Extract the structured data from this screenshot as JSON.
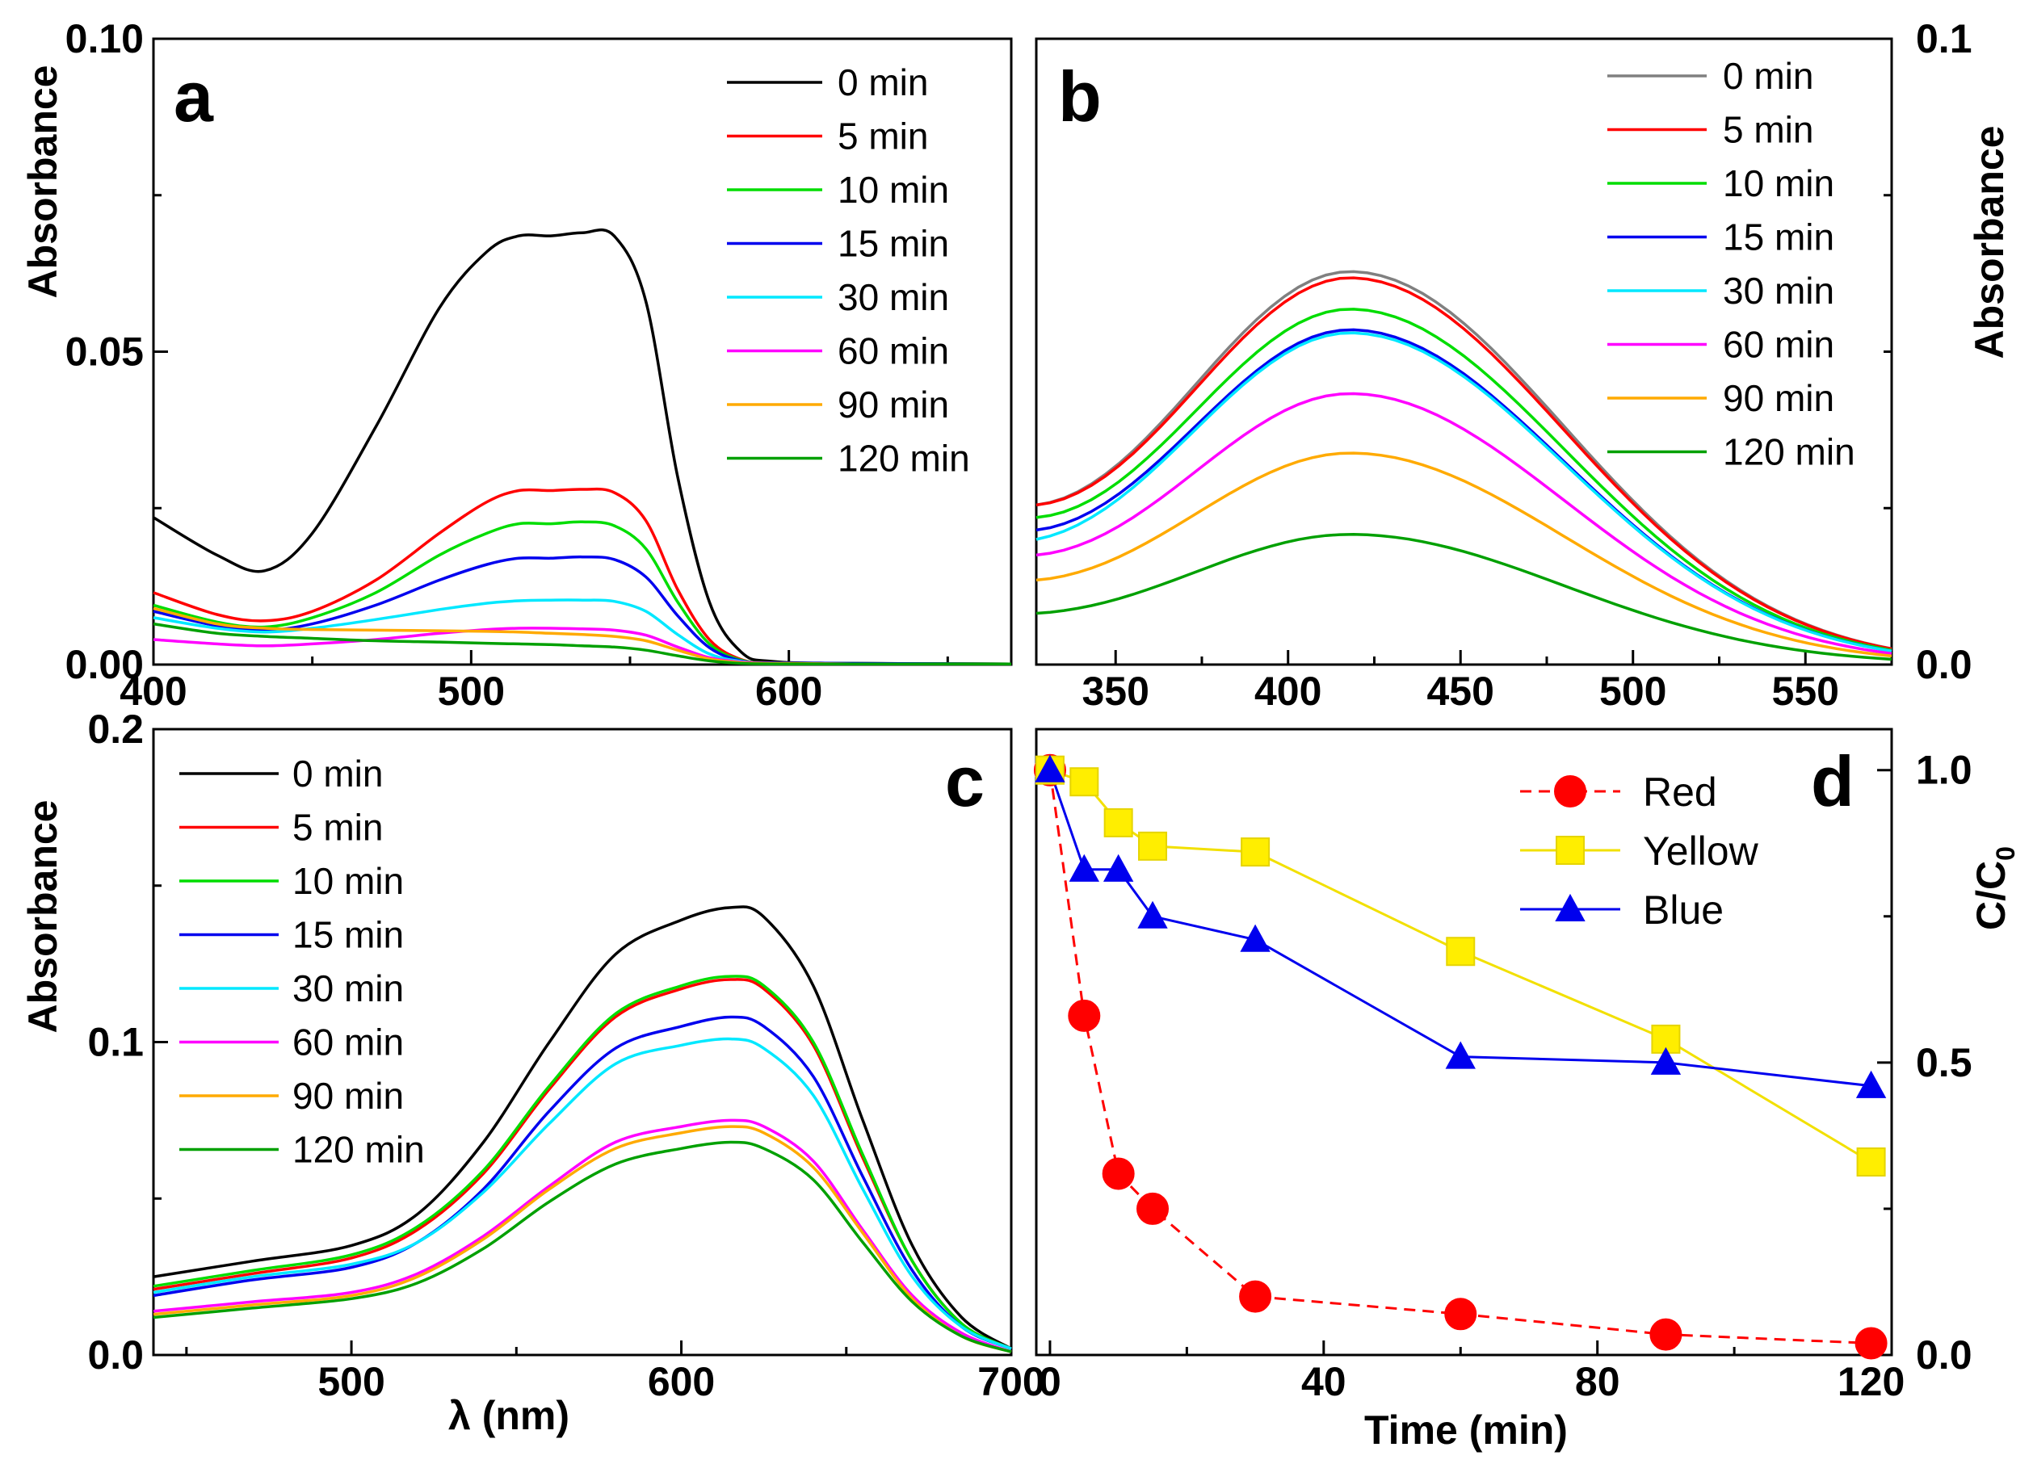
{
  "chart_data": [
    {
      "panel": "a",
      "type": "line",
      "panel_label": "a",
      "xlabel": "",
      "ylabel": "Absorbance",
      "xlim": [
        400,
        670
      ],
      "ylim": [
        0,
        0.1
      ],
      "xticks": [
        "400",
        "500",
        "600"
      ],
      "yticks": [
        "0.00",
        "0.05",
        "0.10"
      ],
      "legend_position": "top-right",
      "series": [
        {
          "name": "0 min",
          "color": "#000000",
          "x": [
            400,
            420,
            435,
            450,
            470,
            490,
            505,
            515,
            525,
            535,
            545,
            555,
            565,
            575,
            585,
            595,
            620,
            670
          ],
          "y": [
            0.0235,
            0.0175,
            0.015,
            0.021,
            0.038,
            0.057,
            0.066,
            0.0685,
            0.0685,
            0.069,
            0.0685,
            0.058,
            0.03,
            0.01,
            0.002,
            0.0005,
            0.0002,
            0.0001
          ]
        },
        {
          "name": "5 min",
          "color": "#ff0000",
          "x": [
            400,
            420,
            435,
            450,
            470,
            490,
            505,
            515,
            525,
            535,
            545,
            555,
            565,
            575,
            585,
            595,
            620,
            670
          ],
          "y": [
            0.0115,
            0.008,
            0.007,
            0.0085,
            0.0135,
            0.021,
            0.026,
            0.0278,
            0.0278,
            0.028,
            0.0275,
            0.023,
            0.012,
            0.004,
            0.0008,
            0.0003,
            0.0002,
            0.0001
          ]
        },
        {
          "name": "10 min",
          "color": "#00dd00",
          "x": [
            400,
            420,
            435,
            450,
            470,
            490,
            505,
            515,
            525,
            535,
            545,
            555,
            565,
            575,
            585,
            595,
            620,
            670
          ],
          "y": [
            0.0095,
            0.0068,
            0.006,
            0.0075,
            0.0115,
            0.0175,
            0.021,
            0.0225,
            0.0225,
            0.0228,
            0.0222,
            0.0185,
            0.01,
            0.0033,
            0.0007,
            0.0003,
            0.0002,
            0.0001
          ]
        },
        {
          "name": "15 min",
          "color": "#0000ee",
          "x": [
            400,
            420,
            435,
            450,
            470,
            490,
            505,
            515,
            525,
            535,
            545,
            555,
            565,
            575,
            585,
            595,
            620,
            670
          ],
          "y": [
            0.0085,
            0.0062,
            0.0055,
            0.0065,
            0.0095,
            0.0135,
            0.016,
            0.017,
            0.017,
            0.0172,
            0.0168,
            0.014,
            0.0078,
            0.0027,
            0.0006,
            0.0003,
            0.0002,
            0.0001
          ]
        },
        {
          "name": "30 min",
          "color": "#00e8ff",
          "x": [
            400,
            420,
            435,
            450,
            470,
            490,
            505,
            515,
            525,
            535,
            545,
            555,
            565,
            575,
            585,
            595,
            620,
            670
          ],
          "y": [
            0.0075,
            0.0058,
            0.0052,
            0.0058,
            0.0072,
            0.0088,
            0.0098,
            0.0102,
            0.0103,
            0.0103,
            0.0101,
            0.0085,
            0.0048,
            0.0017,
            0.0005,
            0.0002,
            0.0001,
            0.0001
          ]
        },
        {
          "name": "60 min",
          "color": "#ff00ff",
          "x": [
            400,
            420,
            435,
            450,
            470,
            490,
            505,
            515,
            525,
            535,
            545,
            555,
            565,
            575,
            585,
            595,
            620,
            670
          ],
          "y": [
            0.004,
            0.0033,
            0.003,
            0.0033,
            0.004,
            0.005,
            0.0056,
            0.0058,
            0.0058,
            0.0057,
            0.0055,
            0.0047,
            0.0028,
            0.0011,
            0.0004,
            0.0002,
            0.0001,
            0.0001
          ]
        },
        {
          "name": "90 min",
          "color": "#ffaa00",
          "x": [
            400,
            420,
            435,
            450,
            470,
            490,
            505,
            515,
            525,
            535,
            545,
            555,
            565,
            575,
            585,
            595,
            620,
            670
          ],
          "y": [
            0.009,
            0.0065,
            0.0058,
            0.0056,
            0.0055,
            0.0054,
            0.0053,
            0.0052,
            0.005,
            0.0048,
            0.0045,
            0.0038,
            0.0023,
            0.0009,
            0.0003,
            0.0002,
            0.0001,
            0.0001
          ]
        },
        {
          "name": "120 min",
          "color": "#00a000",
          "x": [
            400,
            420,
            435,
            450,
            470,
            490,
            505,
            515,
            525,
            535,
            545,
            555,
            565,
            575,
            585,
            595,
            620,
            670
          ],
          "y": [
            0.0065,
            0.005,
            0.0045,
            0.0042,
            0.0038,
            0.0036,
            0.0034,
            0.0033,
            0.0032,
            0.003,
            0.0028,
            0.0023,
            0.0014,
            0.0006,
            0.0002,
            0.0001,
            0.0001,
            0.0001
          ]
        }
      ]
    },
    {
      "panel": "b",
      "type": "line",
      "panel_label": "b",
      "xlabel": "",
      "ylabel": "Absorbance",
      "ylabel_position": "right",
      "xlim": [
        327,
        575
      ],
      "ylim": [
        0,
        0.1
      ],
      "xticks": [
        "350",
        "400",
        "450",
        "500",
        "550"
      ],
      "yticks": [
        "0.0",
        "0.1"
      ],
      "legend_position": "top-right",
      "series": [
        {
          "name": "0 min",
          "color": "#808080",
          "peak": 0.0628,
          "start": 0.0255
        },
        {
          "name": "5 min",
          "color": "#ff0000",
          "peak": 0.0618,
          "start": 0.0255
        },
        {
          "name": "10 min",
          "color": "#00dd00",
          "peak": 0.0568,
          "start": 0.0235
        },
        {
          "name": "15 min",
          "color": "#0000ee",
          "peak": 0.0535,
          "start": 0.0215
        },
        {
          "name": "30 min",
          "color": "#00e8ff",
          "peak": 0.053,
          "start": 0.02
        },
        {
          "name": "60 min",
          "color": "#ff00ff",
          "peak": 0.0433,
          "start": 0.0175
        },
        {
          "name": "90 min",
          "color": "#ffaa00",
          "peak": 0.0338,
          "start": 0.0135
        },
        {
          "name": "120 min",
          "color": "#00a000",
          "peak": 0.0208,
          "start": 0.0082
        }
      ],
      "peak_wavelength": 418
    },
    {
      "panel": "c",
      "type": "line",
      "panel_label": "c",
      "xlabel": "λ (nm)",
      "ylabel": "Absorbance",
      "xlim": [
        440,
        700
      ],
      "ylim": [
        0,
        0.2
      ],
      "xticks": [
        "500",
        "600",
        "700"
      ],
      "yticks": [
        "0.0",
        "0.1",
        "0.2"
      ],
      "legend_position": "top-left",
      "x": [
        440,
        470,
        500,
        520,
        540,
        560,
        580,
        600,
        615,
        625,
        640,
        655,
        670,
        685,
        700
      ],
      "series": [
        {
          "name": "0 min",
          "color": "#000000",
          "y": [
            0.025,
            0.03,
            0.035,
            0.045,
            0.068,
            0.1,
            0.128,
            0.139,
            0.143,
            0.14,
            0.118,
            0.075,
            0.035,
            0.012,
            0.002
          ]
        },
        {
          "name": "5 min",
          "color": "#ff0000",
          "y": [
            0.021,
            0.026,
            0.031,
            0.04,
            0.058,
            0.085,
            0.108,
            0.117,
            0.12,
            0.117,
            0.099,
            0.063,
            0.03,
            0.01,
            0.002
          ]
        },
        {
          "name": "10 min",
          "color": "#00dd00",
          "y": [
            0.022,
            0.027,
            0.032,
            0.041,
            0.059,
            0.086,
            0.109,
            0.118,
            0.121,
            0.118,
            0.1,
            0.064,
            0.03,
            0.01,
            0.002
          ]
        },
        {
          "name": "15 min",
          "color": "#0000ee",
          "y": [
            0.019,
            0.024,
            0.028,
            0.036,
            0.053,
            0.078,
            0.098,
            0.105,
            0.108,
            0.105,
            0.089,
            0.057,
            0.027,
            0.009,
            0.002
          ]
        },
        {
          "name": "30 min",
          "color": "#00e8ff",
          "y": [
            0.02,
            0.025,
            0.029,
            0.036,
            0.052,
            0.074,
            0.093,
            0.099,
            0.101,
            0.098,
            0.083,
            0.053,
            0.025,
            0.009,
            0.002
          ]
        },
        {
          "name": "60 min",
          "color": "#ff00ff",
          "y": [
            0.014,
            0.017,
            0.02,
            0.026,
            0.038,
            0.054,
            0.068,
            0.073,
            0.075,
            0.073,
            0.062,
            0.04,
            0.019,
            0.007,
            0.001
          ]
        },
        {
          "name": "90 min",
          "color": "#ffaa00",
          "y": [
            0.013,
            0.016,
            0.019,
            0.025,
            0.037,
            0.053,
            0.066,
            0.071,
            0.073,
            0.071,
            0.06,
            0.039,
            0.018,
            0.006,
            0.001
          ]
        },
        {
          "name": "120 min",
          "color": "#00a000",
          "y": [
            0.012,
            0.015,
            0.018,
            0.023,
            0.034,
            0.049,
            0.061,
            0.066,
            0.068,
            0.066,
            0.056,
            0.036,
            0.017,
            0.006,
            0.001
          ]
        }
      ]
    },
    {
      "panel": "d",
      "type": "scatter",
      "panel_label": "d",
      "xlabel": "Time (min)",
      "ylabel": "C/C",
      "ylabel_subscript": "0",
      "ylabel_position": "right",
      "xlim": [
        -2,
        123
      ],
      "ylim": [
        0,
        1.07
      ],
      "xticks": [
        "0",
        "40",
        "80",
        "120"
      ],
      "yticks": [
        "0.0",
        "0.5",
        "1.0"
      ],
      "legend_position": "top-right",
      "series": [
        {
          "name": "Red",
          "color": "#ff0000",
          "marker": "circle",
          "line": "dashed",
          "x": [
            0,
            5,
            10,
            15,
            30,
            60,
            90,
            120
          ],
          "y": [
            1.0,
            0.58,
            0.31,
            0.25,
            0.1,
            0.07,
            0.035,
            0.02
          ]
        },
        {
          "name": "Yellow",
          "color": "#ffee00",
          "marker": "square",
          "line": "solid",
          "x": [
            0,
            5,
            10,
            15,
            30,
            60,
            90,
            120
          ],
          "y": [
            1.0,
            0.98,
            0.91,
            0.87,
            0.86,
            0.69,
            0.54,
            0.33
          ]
        },
        {
          "name": "Blue",
          "color": "#0000ee",
          "marker": "triangle",
          "line": "solid",
          "x": [
            0,
            5,
            10,
            15,
            30,
            60,
            90,
            120
          ],
          "y": [
            1.0,
            0.83,
            0.83,
            0.75,
            0.71,
            0.51,
            0.5,
            0.46
          ]
        }
      ]
    }
  ]
}
